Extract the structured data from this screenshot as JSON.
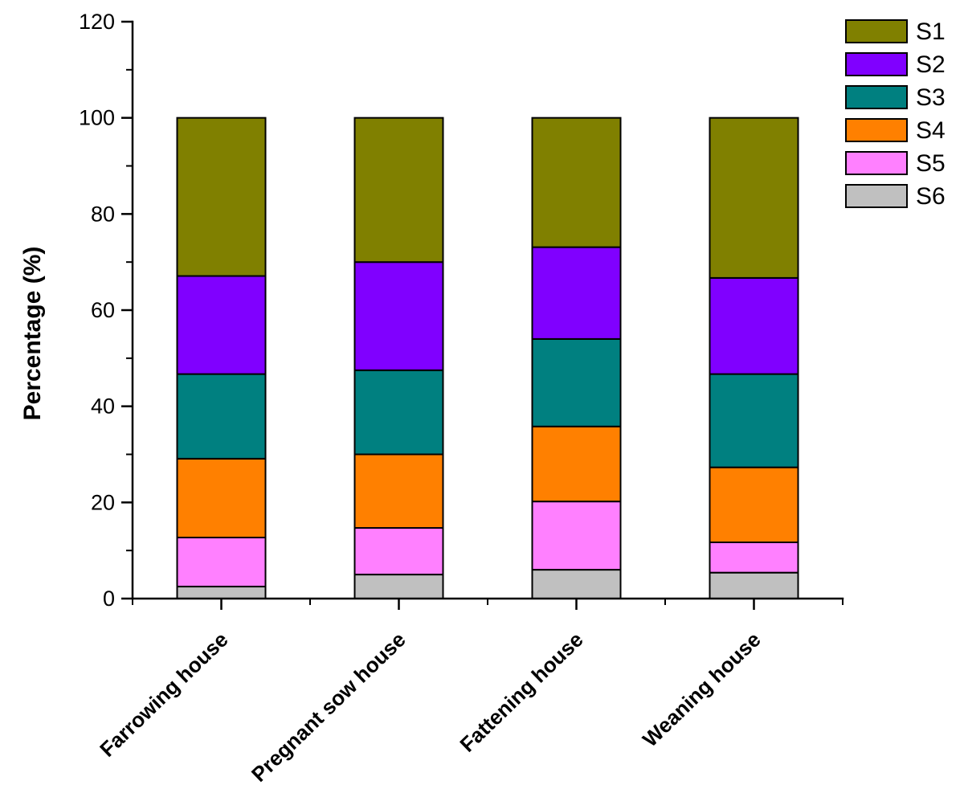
{
  "chart_data": {
    "type": "bar",
    "stacked": true,
    "title": "",
    "xlabel": "",
    "ylabel": "Percentage (%)",
    "ylim": [
      0,
      120
    ],
    "ytick_interval": 20,
    "ytick_labels": [
      "0",
      "20",
      "40",
      "60",
      "80",
      "100",
      "120"
    ],
    "grid": false,
    "legend_position": "top-right",
    "legend_entries": [
      "S1",
      "S2",
      "S3",
      "S4",
      "S5",
      "S6"
    ],
    "categories": [
      "Farrowing house",
      "Pregnant sow house",
      "Fattening house",
      "Weaning house"
    ],
    "series": [
      {
        "name": "S1",
        "color": "#808000",
        "values": [
          32.9,
          30.0,
          26.9,
          33.3
        ]
      },
      {
        "name": "S2",
        "color": "#8000FF",
        "values": [
          20.4,
          22.5,
          19.1,
          20.0
        ]
      },
      {
        "name": "S3",
        "color": "#008080",
        "values": [
          17.6,
          17.5,
          18.2,
          19.4
        ]
      },
      {
        "name": "S4",
        "color": "#FF8000",
        "values": [
          16.4,
          15.3,
          15.6,
          15.6
        ]
      },
      {
        "name": "S5",
        "color": "#FF80FF",
        "values": [
          10.2,
          9.7,
          14.2,
          6.3
        ]
      },
      {
        "name": "S6",
        "color": "#C0C0C0",
        "values": [
          2.5,
          5.0,
          6.0,
          5.4
        ]
      }
    ],
    "stack_order_bottom_to_top": [
      "S6",
      "S5",
      "S4",
      "S3",
      "S2",
      "S1"
    ],
    "bar_totals": [
      100,
      100,
      100,
      100
    ],
    "bar_border_color": "#000000",
    "axis_color": "#000000"
  }
}
